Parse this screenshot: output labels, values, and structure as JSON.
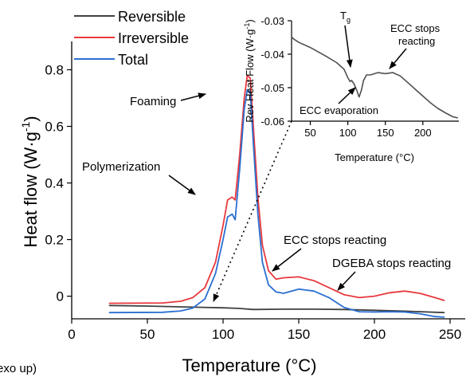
{
  "chart_data": [
    {
      "type": "line",
      "xlabel": "Temperature (°C)",
      "ylabel_main": "Heat flow (W·g",
      "ylabel_sup": "-1",
      "ylabel_close": ")",
      "ylabel_clip": "exo up)",
      "xlim": [
        0,
        260
      ],
      "ylim": [
        -0.08,
        0.9
      ],
      "x_ticks": [
        0,
        50,
        100,
        150,
        200,
        250
      ],
      "y_ticks": [
        0,
        0.2,
        0.4,
        0.6,
        0.8
      ],
      "x_tick_labels": [
        "0",
        "50",
        "100",
        "150",
        "200",
        "250"
      ],
      "y_tick_labels": [
        "0",
        "0.2",
        "0.4",
        "0.6",
        "0.8"
      ],
      "grid": false,
      "legend_position": "top-left",
      "series": [
        {
          "name": "Reversible",
          "color": "#404040",
          "x": [
            25,
            50,
            75,
            100,
            110,
            120,
            140,
            160,
            180,
            200,
            220,
            246
          ],
          "y": [
            -0.033,
            -0.035,
            -0.038,
            -0.041,
            -0.043,
            -0.047,
            -0.046,
            -0.046,
            -0.047,
            -0.05,
            -0.053,
            -0.058
          ]
        },
        {
          "name": "Irreversible",
          "color": "#e8383d",
          "x": [
            25,
            60,
            72,
            80,
            88,
            95,
            100,
            103,
            106,
            108,
            111,
            114,
            116,
            118,
            120,
            123,
            126,
            130,
            135,
            140,
            150,
            160,
            170,
            180,
            190,
            200,
            210,
            220,
            230,
            240,
            246
          ],
          "y": [
            -0.025,
            -0.024,
            -0.018,
            -0.005,
            0.03,
            0.12,
            0.25,
            0.34,
            0.35,
            0.34,
            0.5,
            0.7,
            0.78,
            0.77,
            0.6,
            0.35,
            0.18,
            0.09,
            0.06,
            0.065,
            0.068,
            0.055,
            0.03,
            0.005,
            -0.005,
            0.0,
            0.012,
            0.018,
            0.01,
            -0.005,
            -0.015
          ]
        },
        {
          "name": "Total",
          "color": "#2a6fd1",
          "x": [
            25,
            60,
            72,
            80,
            88,
            95,
            100,
            103,
            106,
            108,
            111,
            114,
            116,
            118,
            120,
            123,
            126,
            130,
            135,
            140,
            150,
            160,
            170,
            180,
            190,
            200,
            210,
            220,
            230,
            240,
            246
          ],
          "y": [
            -0.058,
            -0.057,
            -0.052,
            -0.042,
            -0.01,
            0.08,
            0.2,
            0.28,
            0.29,
            0.27,
            0.45,
            0.66,
            0.73,
            0.72,
            0.54,
            0.29,
            0.12,
            0.04,
            0.015,
            0.01,
            0.025,
            0.018,
            -0.005,
            -0.04,
            -0.055,
            -0.056,
            -0.055,
            -0.056,
            -0.062,
            -0.072,
            -0.074
          ]
        }
      ],
      "annotations": [
        {
          "text": "Foaming"
        },
        {
          "text": "Polymerization"
        },
        {
          "text": "ECC stops reacting"
        },
        {
          "text": "DGEBA stops reacting"
        }
      ]
    },
    {
      "type": "line",
      "xlabel": "Temperature (°C)",
      "ylabel_main": "Rev Heat Flow (W·g",
      "ylabel_sup": "-1",
      "ylabel_close": ")",
      "xlim": [
        25,
        248
      ],
      "ylim": [
        -0.06,
        -0.03
      ],
      "x_ticks": [
        50,
        100,
        150,
        200
      ],
      "y_ticks": [
        -0.06,
        -0.05,
        -0.04,
        -0.03
      ],
      "x_tick_labels": [
        "50",
        "100",
        "150",
        "200"
      ],
      "y_tick_labels": [
        "-0.06",
        "-0.05",
        "-0.04",
        "-0.03"
      ],
      "grid": false,
      "series": [
        {
          "name": "Reversible",
          "color": "#505050",
          "x": [
            25,
            28,
            35,
            50,
            70,
            85,
            95,
            100,
            103,
            105,
            108,
            112,
            115,
            118,
            121,
            125,
            130,
            140,
            150,
            160,
            170,
            180,
            190,
            200,
            210,
            220,
            230,
            240,
            246
          ],
          "y": [
            -0.0348,
            -0.0355,
            -0.0365,
            -0.038,
            -0.0405,
            -0.0425,
            -0.0445,
            -0.047,
            -0.0482,
            -0.0478,
            -0.0488,
            -0.0508,
            -0.0528,
            -0.0508,
            -0.0478,
            -0.0462,
            -0.0462,
            -0.0455,
            -0.0458,
            -0.0455,
            -0.0465,
            -0.0485,
            -0.0505,
            -0.0525,
            -0.0545,
            -0.0562,
            -0.0575,
            -0.0587,
            -0.059
          ]
        }
      ],
      "annotations": [
        {
          "text": "T",
          "sub": "g"
        },
        {
          "text": "ECC stops"
        },
        {
          "text": "reacting"
        },
        {
          "text": "ECC evaporation"
        }
      ]
    }
  ]
}
